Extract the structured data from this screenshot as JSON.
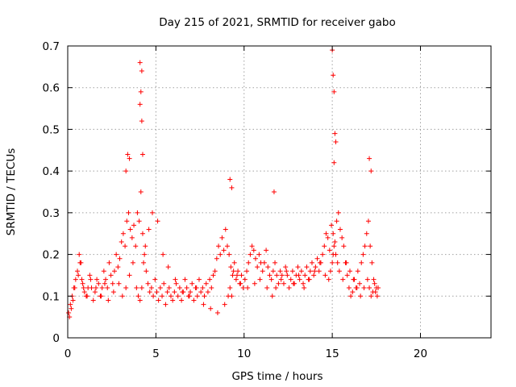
{
  "chart_data": {
    "type": "scatter",
    "title": "Day 215 of 2021, SRMTID for receiver gabo",
    "xlabel": "GPS time / hours",
    "ylabel": "SRMTID / TECUs",
    "xlim": [
      0,
      24
    ],
    "ylim": [
      0,
      0.7
    ],
    "xticks": [
      0,
      5,
      10,
      15,
      20
    ],
    "yticks": [
      0,
      0.1,
      0.2,
      0.3,
      0.4,
      0.5,
      0.6,
      0.7
    ],
    "xtick_labels": [
      "0",
      "5",
      "10",
      "15",
      "20"
    ],
    "ytick_labels": [
      "0",
      "0.1",
      "0.2",
      "0.3",
      "0.4",
      "0.5",
      "0.6",
      "0.7"
    ],
    "grid": true,
    "marker": "plus",
    "color": "#ff0000",
    "series": [
      {
        "name": "SRMTID",
        "x": [
          0.05,
          0.15,
          0.25,
          0.35,
          0.45,
          0.55,
          0.65,
          0.75,
          0.85,
          0.95,
          1.05,
          1.15,
          1.25,
          1.35,
          1.45,
          1.55,
          1.65,
          1.75,
          1.85,
          1.95,
          2.05,
          2.15,
          2.25,
          2.35,
          2.45,
          2.55,
          2.65,
          2.75,
          2.85,
          2.95,
          3.05,
          3.15,
          3.25,
          3.35,
          3.45,
          3.55,
          3.65,
          3.75,
          3.85,
          3.95,
          4.05,
          4.15,
          4.25,
          4.35,
          4.45,
          4.55,
          4.65,
          4.75,
          4.85,
          4.95,
          5.05,
          5.15,
          5.25,
          5.35,
          5.45,
          5.55,
          5.65,
          5.75,
          5.85,
          5.95,
          6.05,
          6.15,
          6.25,
          6.35,
          6.45,
          6.55,
          6.65,
          6.75,
          6.85,
          6.95,
          7.05,
          7.15,
          7.25,
          7.35,
          7.45,
          7.55,
          7.65,
          7.75,
          7.85,
          7.95,
          8.05,
          8.15,
          8.25,
          8.35,
          8.45,
          8.55,
          8.65,
          8.75,
          8.85,
          8.95,
          9.05,
          9.15,
          9.25,
          9.35,
          9.45,
          9.55,
          9.65,
          9.75,
          9.85,
          9.95,
          10.05,
          10.15,
          10.25,
          10.35,
          10.45,
          10.55,
          10.65,
          10.75,
          10.85,
          10.95,
          11.05,
          11.15,
          11.25,
          11.35,
          11.45,
          11.55,
          11.65,
          11.75,
          11.85,
          11.95,
          12.05,
          12.15,
          12.25,
          12.35,
          12.45,
          12.55,
          12.65,
          12.75,
          12.85,
          12.95,
          13.05,
          13.15,
          13.25,
          13.35,
          13.45,
          13.55,
          13.65,
          13.75,
          13.85,
          13.95,
          14.05,
          14.15,
          14.25,
          14.35,
          14.45,
          14.55,
          14.65,
          14.75,
          14.85,
          14.95,
          15.05,
          15.15,
          15.25,
          15.35,
          15.45,
          15.55,
          15.65,
          15.75,
          15.85,
          15.95,
          16.05,
          16.15,
          16.25,
          16.35,
          16.45,
          16.55,
          16.65,
          16.75,
          16.85,
          16.95,
          17.05,
          17.15,
          17.25,
          17.35,
          17.45,
          17.55,
          0.1,
          0.2,
          0.3,
          0.4,
          0.6,
          0.7,
          0.8,
          0.9,
          1.1,
          1.3,
          1.6,
          1.9,
          2.1,
          2.3,
          2.6,
          2.9,
          3.1,
          3.3,
          3.5,
          3.7,
          3.9,
          4.0,
          4.1,
          4.2,
          4.3,
          4.4,
          4.6,
          4.8,
          5.1,
          5.4,
          5.7,
          6.1,
          6.5,
          6.9,
          7.3,
          7.7,
          8.1,
          8.5,
          8.9,
          9.1,
          9.2,
          9.3,
          9.4,
          9.6,
          9.8,
          10.2,
          10.6,
          10.9,
          11.3,
          11.6,
          11.8,
          12.1,
          12.4,
          12.8,
          13.1,
          13.4,
          13.7,
          14.0,
          14.3,
          14.6,
          14.8,
          14.9,
          15.0,
          15.05,
          15.1,
          15.2,
          15.3,
          15.4,
          15.6,
          15.8,
          16.0,
          16.2,
          16.4,
          16.6,
          16.8,
          17.0,
          17.1,
          17.2,
          17.3,
          17.4,
          17.5,
          17.6,
          3.3,
          3.4,
          3.5,
          4.1,
          4.15,
          4.2,
          4.25,
          15.0,
          15.05,
          15.1,
          15.15,
          15.2,
          9.2,
          9.3,
          11.7,
          17.1,
          17.2,
          4.1,
          4.2,
          15.1
        ],
        "y": [
          0.06,
          0.08,
          0.1,
          0.12,
          0.14,
          0.16,
          0.2,
          0.18,
          0.13,
          0.11,
          0.1,
          0.12,
          0.15,
          0.12,
          0.09,
          0.11,
          0.14,
          0.13,
          0.1,
          0.12,
          0.16,
          0.14,
          0.12,
          0.18,
          0.15,
          0.13,
          0.16,
          0.2,
          0.17,
          0.19,
          0.23,
          0.25,
          0.22,
          0.28,
          0.3,
          0.26,
          0.24,
          0.27,
          0.22,
          0.3,
          0.28,
          0.35,
          0.25,
          0.2,
          0.16,
          0.13,
          0.11,
          0.12,
          0.1,
          0.14,
          0.11,
          0.09,
          0.12,
          0.1,
          0.13,
          0.08,
          0.11,
          0.12,
          0.1,
          0.09,
          0.11,
          0.13,
          0.1,
          0.12,
          0.09,
          0.11,
          0.14,
          0.12,
          0.1,
          0.11,
          0.13,
          0.09,
          0.12,
          0.1,
          0.14,
          0.11,
          0.12,
          0.1,
          0.13,
          0.11,
          0.14,
          0.12,
          0.15,
          0.16,
          0.19,
          0.22,
          0.2,
          0.24,
          0.21,
          0.26,
          0.22,
          0.2,
          0.17,
          0.15,
          0.18,
          0.14,
          0.16,
          0.13,
          0.15,
          0.12,
          0.14,
          0.16,
          0.18,
          0.2,
          0.22,
          0.21,
          0.19,
          0.17,
          0.2,
          0.18,
          0.16,
          0.18,
          0.21,
          0.17,
          0.15,
          0.14,
          0.16,
          0.18,
          0.15,
          0.13,
          0.16,
          0.15,
          0.13,
          0.17,
          0.15,
          0.12,
          0.14,
          0.16,
          0.13,
          0.15,
          0.17,
          0.14,
          0.16,
          0.13,
          0.15,
          0.17,
          0.14,
          0.16,
          0.18,
          0.15,
          0.17,
          0.19,
          0.16,
          0.18,
          0.2,
          0.22,
          0.25,
          0.24,
          0.21,
          0.27,
          0.25,
          0.23,
          0.28,
          0.3,
          0.26,
          0.24,
          0.22,
          0.18,
          0.15,
          0.12,
          0.1,
          0.11,
          0.14,
          0.12,
          0.16,
          0.13,
          0.18,
          0.2,
          0.22,
          0.25,
          0.28,
          0.22,
          0.18,
          0.14,
          0.11,
          0.1,
          0.05,
          0.07,
          0.09,
          0.12,
          0.15,
          0.18,
          0.14,
          0.12,
          0.1,
          0.14,
          0.12,
          0.1,
          0.13,
          0.09,
          0.11,
          0.13,
          0.1,
          0.12,
          0.15,
          0.18,
          0.12,
          0.1,
          0.09,
          0.12,
          0.18,
          0.22,
          0.26,
          0.3,
          0.28,
          0.2,
          0.17,
          0.14,
          0.11,
          0.1,
          0.12,
          0.08,
          0.07,
          0.06,
          0.08,
          0.1,
          0.12,
          0.1,
          0.16,
          0.15,
          0.13,
          0.12,
          0.13,
          0.14,
          0.12,
          0.1,
          0.12,
          0.14,
          0.16,
          0.13,
          0.15,
          0.12,
          0.14,
          0.16,
          0.18,
          0.15,
          0.14,
          0.16,
          0.18,
          0.2,
          0.22,
          0.2,
          0.18,
          0.16,
          0.14,
          0.18,
          0.16,
          0.14,
          0.12,
          0.1,
          0.12,
          0.14,
          0.12,
          0.1,
          0.11,
          0.13,
          0.12,
          0.12,
          0.4,
          0.44,
          0.43,
          0.66,
          0.59,
          0.52,
          0.44,
          0.69,
          0.63,
          0.59,
          0.49,
          0.47,
          0.38,
          0.36,
          0.35,
          0.43,
          0.4,
          0.56,
          0.64,
          0.42
        ]
      }
    ]
  }
}
